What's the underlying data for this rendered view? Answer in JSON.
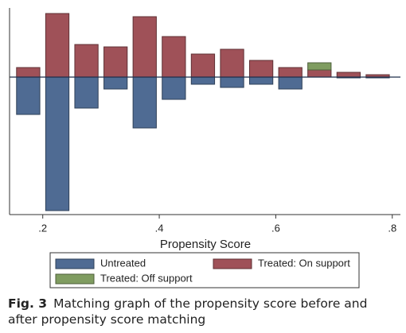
{
  "chart_data": {
    "type": "histogram",
    "xlabel": "Propensity Score",
    "bins": [
      0.15,
      0.2,
      0.25,
      0.3,
      0.35,
      0.4,
      0.45,
      0.5,
      0.55,
      0.6,
      0.65,
      0.7,
      0.75,
      0.8
    ],
    "series": [
      {
        "name": "Untreated",
        "color": "#4f6b93",
        "values": [
          -47,
          -168,
          -39,
          -15,
          -64,
          -28,
          -9,
          -13,
          -9,
          -15,
          0,
          -1,
          -1
        ]
      },
      {
        "name": "Treated: On support",
        "color": "#9f5158",
        "values": [
          12,
          80,
          41,
          38,
          76,
          51,
          29,
          35,
          21,
          12,
          9,
          6,
          3
        ]
      },
      {
        "name": "Treated: Off support",
        "color": "#7f9c60",
        "values": [
          null,
          null,
          null,
          null,
          null,
          null,
          null,
          null,
          null,
          null,
          9,
          null,
          null
        ]
      }
    ],
    "xlim": [
      0.143,
      0.814
    ],
    "xticks": [
      {
        "value": 0.2,
        "label": ".2"
      },
      {
        "value": 0.4,
        "label": ".4"
      },
      {
        "value": 0.6,
        "label": ".6"
      },
      {
        "value": 0.8,
        "label": ".8"
      }
    ],
    "ylim": [
      -173,
      87
    ],
    "zero_line": true
  },
  "caption": {
    "label": "Fig. 3",
    "text": "Matching graph of the propensity score before and after propensity score matching"
  }
}
